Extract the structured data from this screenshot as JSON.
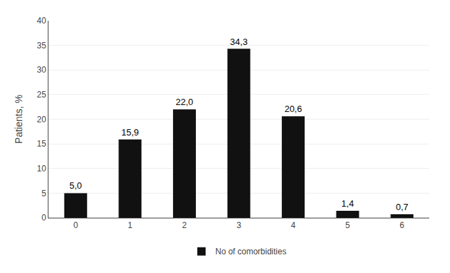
{
  "chart_data": {
    "type": "bar",
    "categories": [
      "0",
      "1",
      "2",
      "3",
      "4",
      "5",
      "6"
    ],
    "series": [
      {
        "name": "No of comorbidities",
        "color": "#111111",
        "values": [
          5.0,
          15.9,
          22.0,
          34.3,
          20.6,
          1.4,
          0.7
        ],
        "value_labels": [
          "5,0",
          "15,9",
          "22,0",
          "34,3",
          "20,6",
          "1,4",
          "0,7"
        ]
      }
    ],
    "ylabel": "Patients, %",
    "ylim": [
      0,
      40
    ],
    "yticks": [
      0,
      5,
      10,
      15,
      20,
      25,
      30,
      35,
      40
    ],
    "grid": true,
    "legend": "bottom",
    "data_labels": true
  }
}
